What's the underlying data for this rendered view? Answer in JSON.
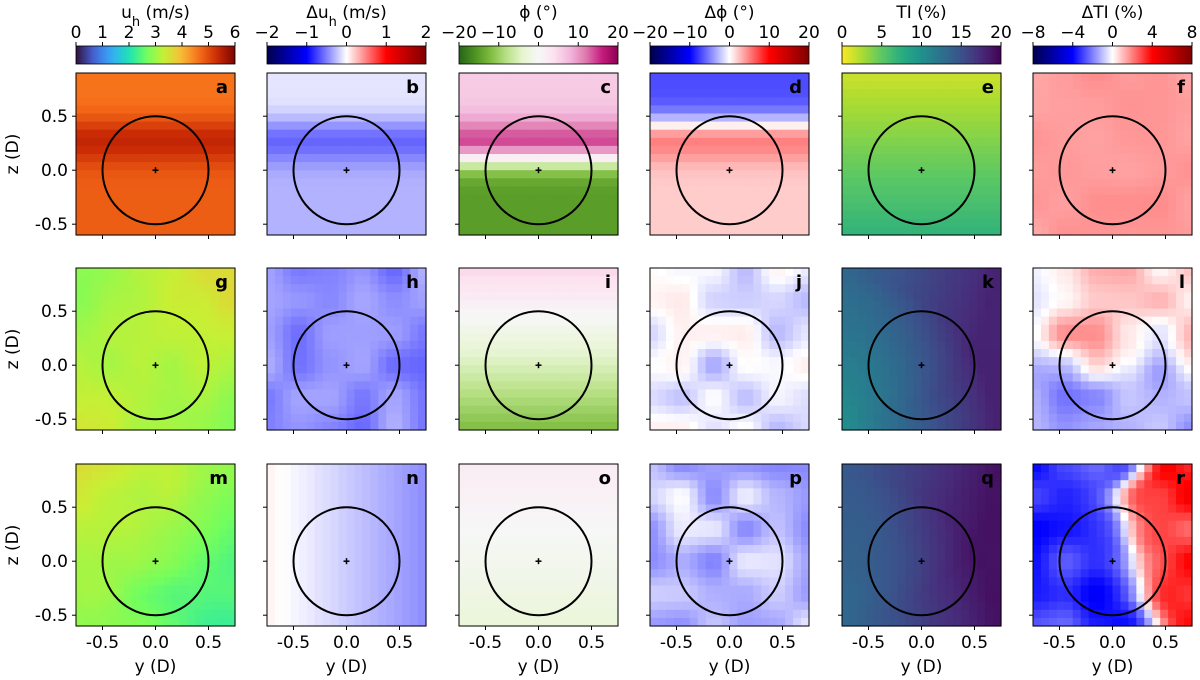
{
  "chart_data": {
    "type": "heatmap",
    "figure": "6x3 grid of contour maps over a rotor disk (circle of diameter 1 D, hub marked with +)",
    "columns": [
      {
        "title_parts": [
          "u",
          "h",
          "(m/s)"
        ],
        "ticks": [
          "0",
          "1",
          "2",
          "3",
          "4",
          "5",
          "6"
        ],
        "cmap": "turbo",
        "range": [
          0,
          6
        ]
      },
      {
        "title_parts": [
          "Δu",
          "h",
          "(m/s)"
        ],
        "ticks": [
          "−2",
          "−1",
          "0",
          "1",
          "2"
        ],
        "cmap": "seismic",
        "range": [
          -2,
          2
        ]
      },
      {
        "title_parts": [
          "ϕ",
          "",
          "(°)"
        ],
        "ticks": [
          "−20",
          "−10",
          "0",
          "10",
          "20"
        ],
        "cmap": "piyg",
        "range": [
          -20,
          20
        ]
      },
      {
        "title_parts": [
          "Δϕ",
          "",
          "(°)"
        ],
        "ticks": [
          "−20",
          "−10",
          "0",
          "10",
          "20"
        ],
        "cmap": "seismic",
        "range": [
          -20,
          20
        ]
      },
      {
        "title_parts": [
          "TI",
          "",
          "(%)"
        ],
        "ticks": [
          "0",
          "5",
          "10",
          "15",
          "20"
        ],
        "cmap": "viridis",
        "range": [
          0,
          20
        ]
      },
      {
        "title_parts": [
          "ΔTI",
          "",
          "(%)"
        ],
        "ticks": [
          "−8",
          "−4",
          "0",
          "4",
          "8"
        ],
        "cmap": "seismic",
        "range": [
          -8,
          8
        ]
      }
    ],
    "panels": [
      {
        "letter": "a",
        "row": 0,
        "col": 0,
        "pattern": "band",
        "top": 4.6,
        "center": 5.4,
        "bottom": 4.8
      },
      {
        "letter": "b",
        "row": 0,
        "col": 1,
        "pattern": "band",
        "top": -0.1,
        "center": -0.6,
        "bottom": -0.3
      },
      {
        "letter": "c",
        "row": 0,
        "col": 2,
        "pattern": "band",
        "top": 6,
        "center": 14,
        "bottom": -15
      },
      {
        "letter": "d",
        "row": 0,
        "col": 3,
        "pattern": "band",
        "top": -7,
        "center": 5,
        "bottom": 2
      },
      {
        "letter": "e",
        "row": 0,
        "col": 4,
        "pattern": "vgrad",
        "top": 1.5,
        "bottom": 7
      },
      {
        "letter": "f",
        "row": 0,
        "col": 5,
        "pattern": "uniform",
        "value": 1.6
      },
      {
        "letter": "g",
        "row": 1,
        "col": 0,
        "pattern": "corner",
        "base": 2.8,
        "tr": 3.7,
        "bl": 3.4
      },
      {
        "letter": "h",
        "row": 1,
        "col": 1,
        "pattern": "noise",
        "base": -0.45,
        "amp": 0.15
      },
      {
        "letter": "i",
        "row": 1,
        "col": 2,
        "pattern": "vgrad",
        "top": 5,
        "bottom": -12
      },
      {
        "letter": "j",
        "row": 1,
        "col": 3,
        "pattern": "noise",
        "base": -1,
        "amp": 2.5
      },
      {
        "letter": "k",
        "row": 1,
        "col": 4,
        "pattern": "corner",
        "base": 18,
        "tl": 13,
        "bl": 10
      },
      {
        "letter": "l",
        "row": 1,
        "col": 5,
        "pattern": "split",
        "top": 0.6,
        "bottom": -1.6,
        "amp": 1.2
      },
      {
        "letter": "m",
        "row": 2,
        "col": 0,
        "pattern": "corner",
        "base": 3.0,
        "tl": 3.5,
        "br": 2.2
      },
      {
        "letter": "n",
        "row": 2,
        "col": 1,
        "pattern": "hgrad",
        "left": 0.05,
        "right": -0.45
      },
      {
        "letter": "o",
        "row": 2,
        "col": 2,
        "pattern": "vgrad",
        "top": 2,
        "bottom": -3
      },
      {
        "letter": "p",
        "row": 2,
        "col": 3,
        "pattern": "noise",
        "base": -2.5,
        "amp": 2.5
      },
      {
        "letter": "q",
        "row": 2,
        "col": 4,
        "pattern": "corner",
        "base": 19,
        "tl": 14,
        "bl": 13
      },
      {
        "letter": "r",
        "row": 2,
        "col": 5,
        "pattern": "hsplit",
        "left": -3.5,
        "right": 3.5
      }
    ],
    "rotor_diameter": 1.0,
    "xlabel": "y (D)",
    "ylabel": "z (D)",
    "xlim": [
      -0.75,
      0.75
    ],
    "ylim": [
      -0.6,
      0.9
    ],
    "xticks": [
      "-0.5",
      "0.0",
      "0.5"
    ],
    "yticks": [
      "-0.5",
      "0.0",
      "0.5"
    ],
    "xtick_values": [
      -0.5,
      0.0,
      0.5
    ],
    "ytick_values": [
      -0.5,
      0.0,
      0.5
    ]
  }
}
